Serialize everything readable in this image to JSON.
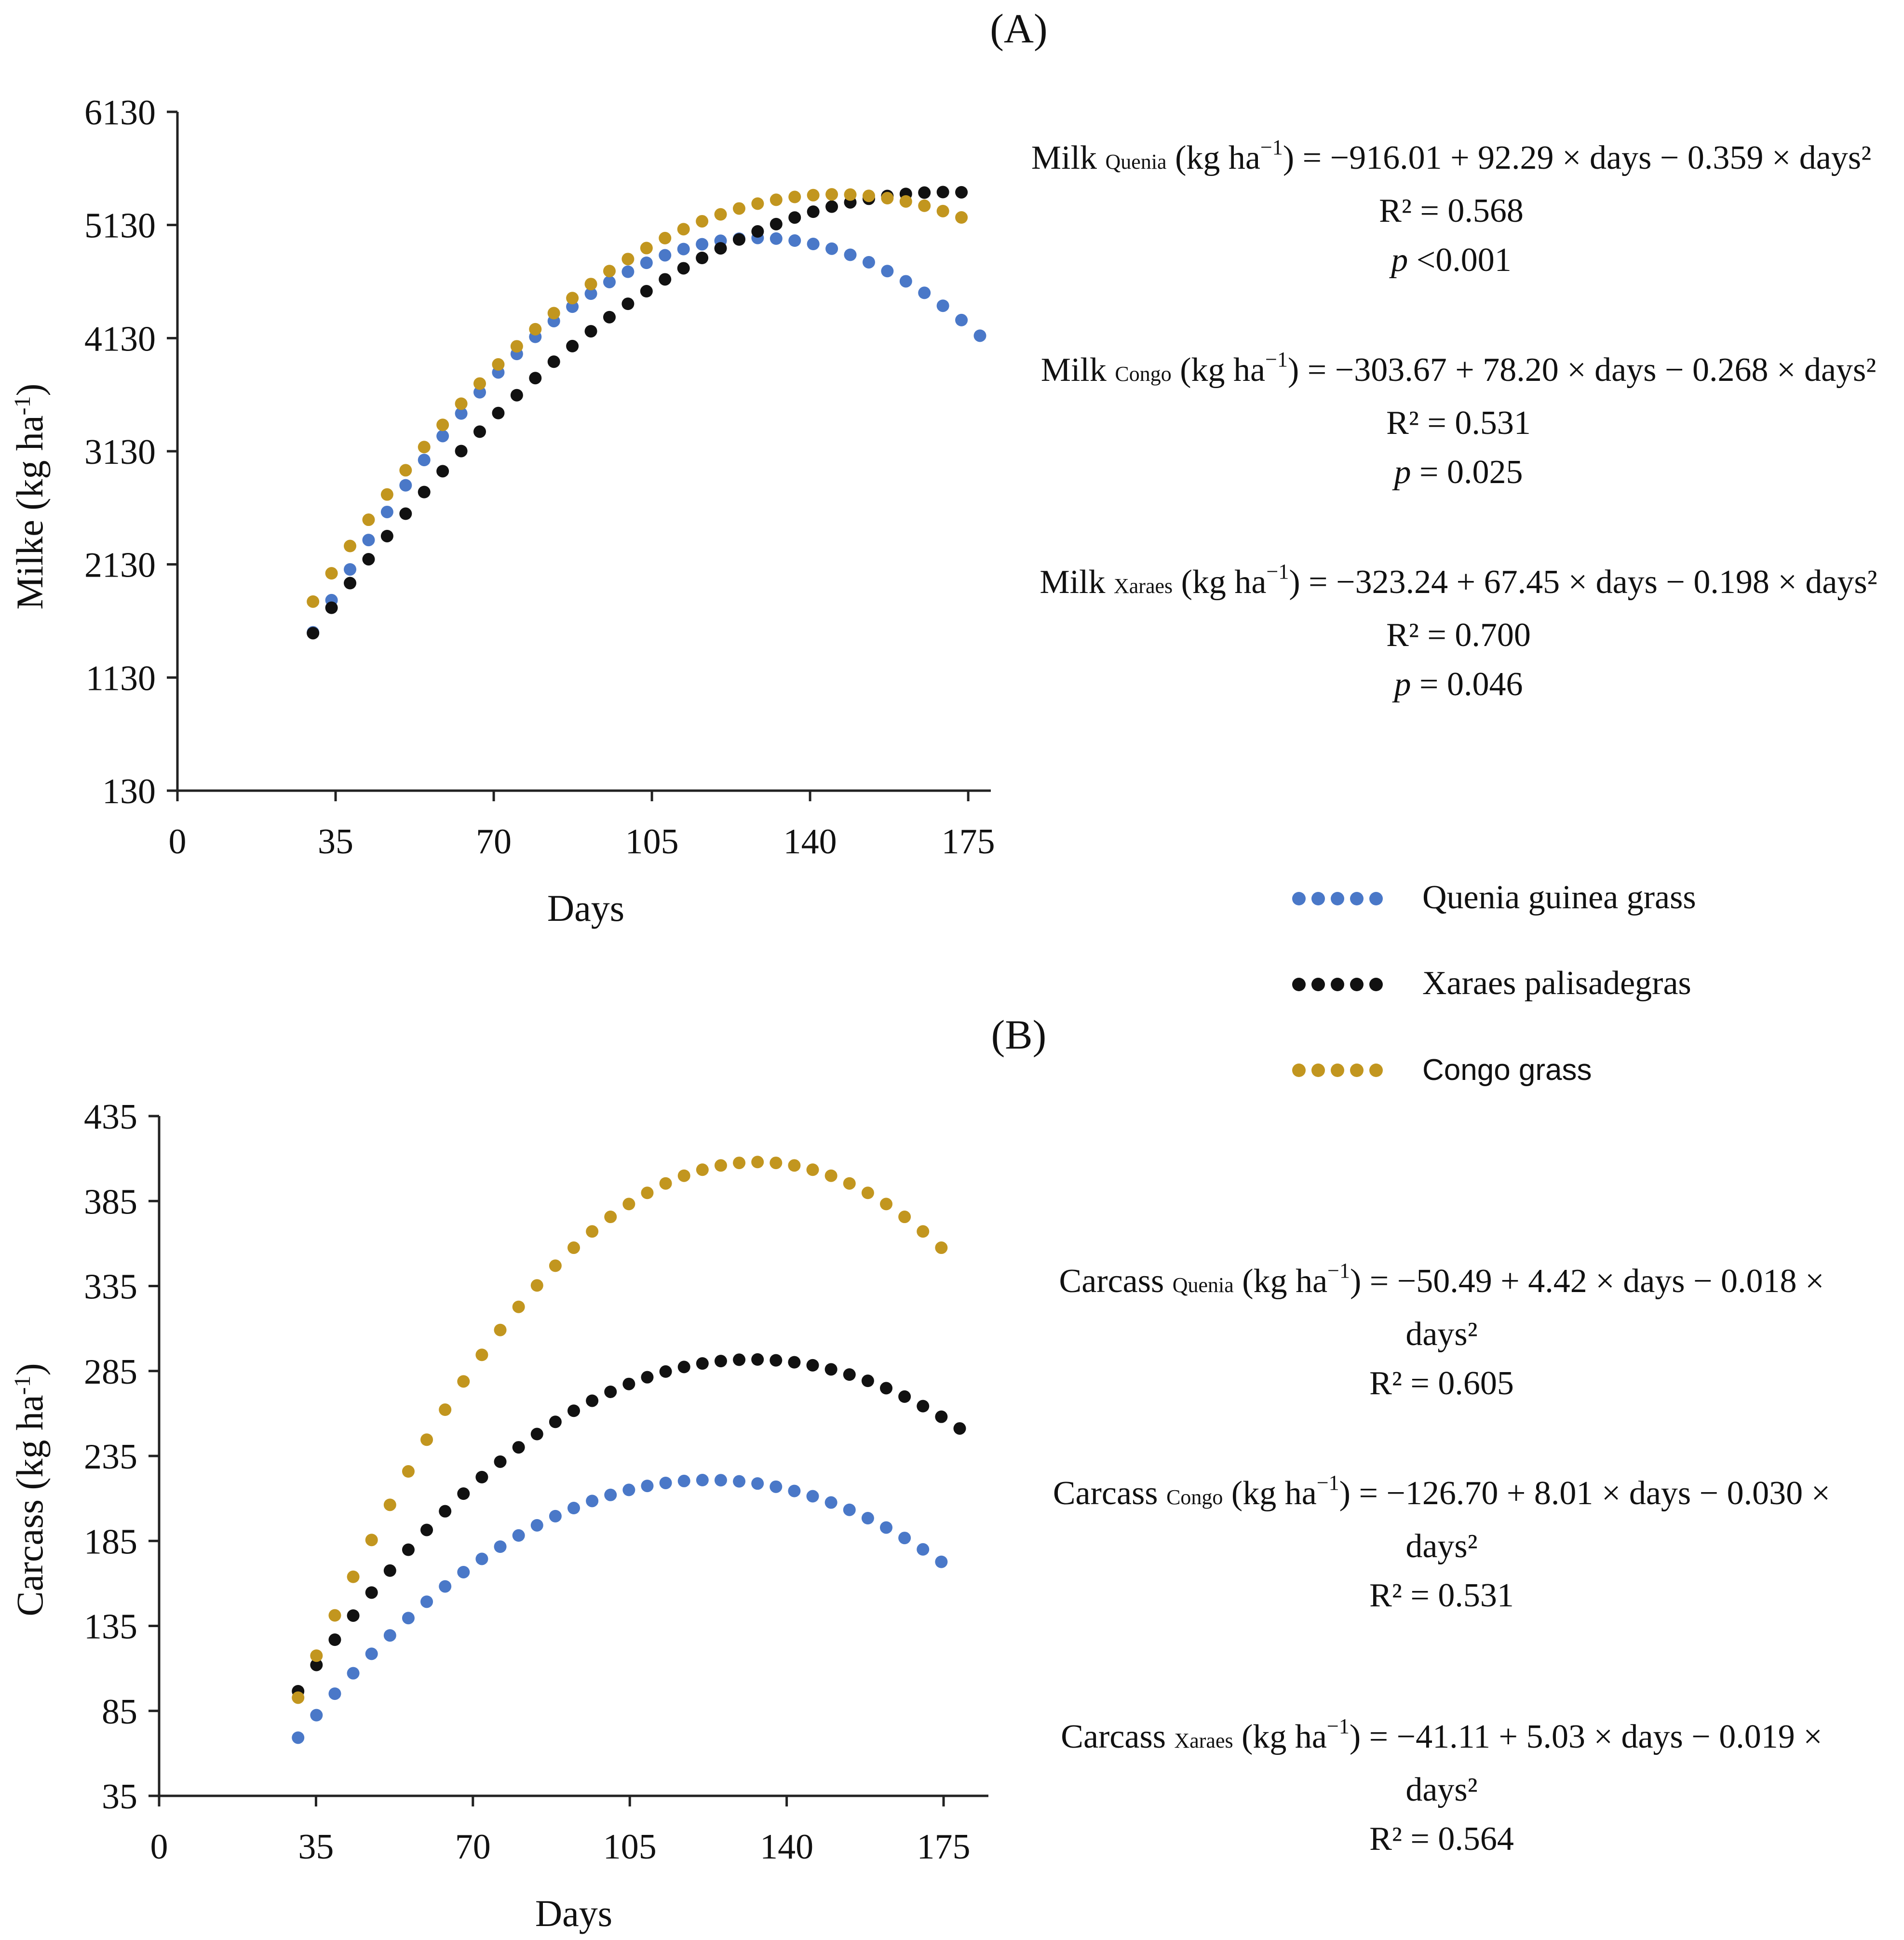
{
  "chart_data": [
    {
      "panel": "(A)",
      "type": "scatter",
      "xlabel": "Days",
      "ylabel": "Milke (kg ha",
      "ylabel_sup": "-1",
      "ylabel_close": ")",
      "xlim": [
        0,
        180
      ],
      "ylim": [
        130,
        6130
      ],
      "xticks": [
        0,
        35,
        70,
        105,
        140,
        175
      ],
      "yticks": [
        130,
        1130,
        2130,
        3130,
        4130,
        5130,
        6130
      ],
      "series": [
        {
          "name": "Quenia guinea grass",
          "a": -916.01,
          "b": 92.29,
          "c": -0.359,
          "x_start": 30,
          "x_end": 178
        },
        {
          "name": "Xaraes palisadegras",
          "a": -323.24,
          "b": 67.45,
          "c": -0.198,
          "x_start": 30,
          "x_end": 177
        },
        {
          "name": "Congo grass",
          "a": -303.67,
          "b": 78.2,
          "c": -0.268,
          "x_start": 30,
          "x_end": 177
        }
      ],
      "equations": [
        {
          "prefix": "Milk",
          "sub": "Quenia",
          "unit_open": "(kg ha",
          "unit_sup": "−1",
          "rest": ") = −916.01 + 92.29 × days − 0.359 × days²",
          "r2": "R² = 0.568",
          "p_label": "p",
          "p_value": "<0.001"
        },
        {
          "prefix": "Milk",
          "sub": "Congo",
          "unit_open": "(kg ha",
          "unit_sup": "−1",
          "rest": ") = −303.67 + 78.20 × days − 0.268 × days²",
          "r2": "R² = 0.531",
          "p_label": "p",
          "p_value": " = 0.025"
        },
        {
          "prefix": "Milk",
          "sub": "Xaraes",
          "unit_open": "(kg ha",
          "unit_sup": "−1",
          "rest": ") = −323.24 + 67.45 × days − 0.198 × days²",
          "r2": "R² = 0.700",
          "p_label": "p",
          "p_value": " = 0.046"
        }
      ]
    },
    {
      "panel": "(B)",
      "type": "scatter",
      "xlabel": "Days",
      "ylabel": "Carcass (kg ha",
      "ylabel_sup": "-1",
      "ylabel_close": ")",
      "xlim": [
        0,
        185
      ],
      "ylim": [
        35,
        435
      ],
      "xticks": [
        0,
        35,
        70,
        105,
        140,
        175
      ],
      "yticks": [
        35,
        85,
        135,
        185,
        235,
        285,
        335,
        385,
        435
      ],
      "series": [
        {
          "name": "Quenia guinea grass",
          "a": -50.49,
          "b": 4.42,
          "c": -0.018,
          "x_start": 31,
          "x_end": 178
        },
        {
          "name": "Xaraes palisadegras",
          "a": -41.11,
          "b": 5.03,
          "c": -0.019,
          "x_start": 31,
          "x_end": 180
        },
        {
          "name": "Congo grass",
          "a": -126.7,
          "b": 8.01,
          "c": -0.03,
          "x_start": 31,
          "x_end": 178
        }
      ],
      "equations": [
        {
          "prefix": "Carcass",
          "sub": "Quenia",
          "unit_open": "(kg ha",
          "unit_sup": "−1",
          "rest": ") = −50.49 + 4.42 × days − 0.018 ×",
          "cont": "days²",
          "r2": "R² = 0.605"
        },
        {
          "prefix": "Carcass",
          "sub": "Congo",
          "unit_open": "(kg ha",
          "unit_sup": "−1",
          "rest": ") = −126.70 + 8.01 × days − 0.030 ×",
          "cont": "days²",
          "r2": "R² = 0.531"
        },
        {
          "prefix": "Carcass",
          "sub": "Xaraes",
          "unit_open": "(kg ha",
          "unit_sup": "−1",
          "rest": ") = −41.11 + 5.03 × days − 0.019 ×",
          "cont": "days²",
          "r2": "R² = 0.564"
        }
      ]
    }
  ],
  "legend": [
    {
      "label": "Quenia guinea grass",
      "color": "#4a78c8"
    },
    {
      "label": "Xaraes palisadegras",
      "color": "#111111"
    },
    {
      "label": "Congo grass",
      "color": "#c2961f"
    }
  ]
}
